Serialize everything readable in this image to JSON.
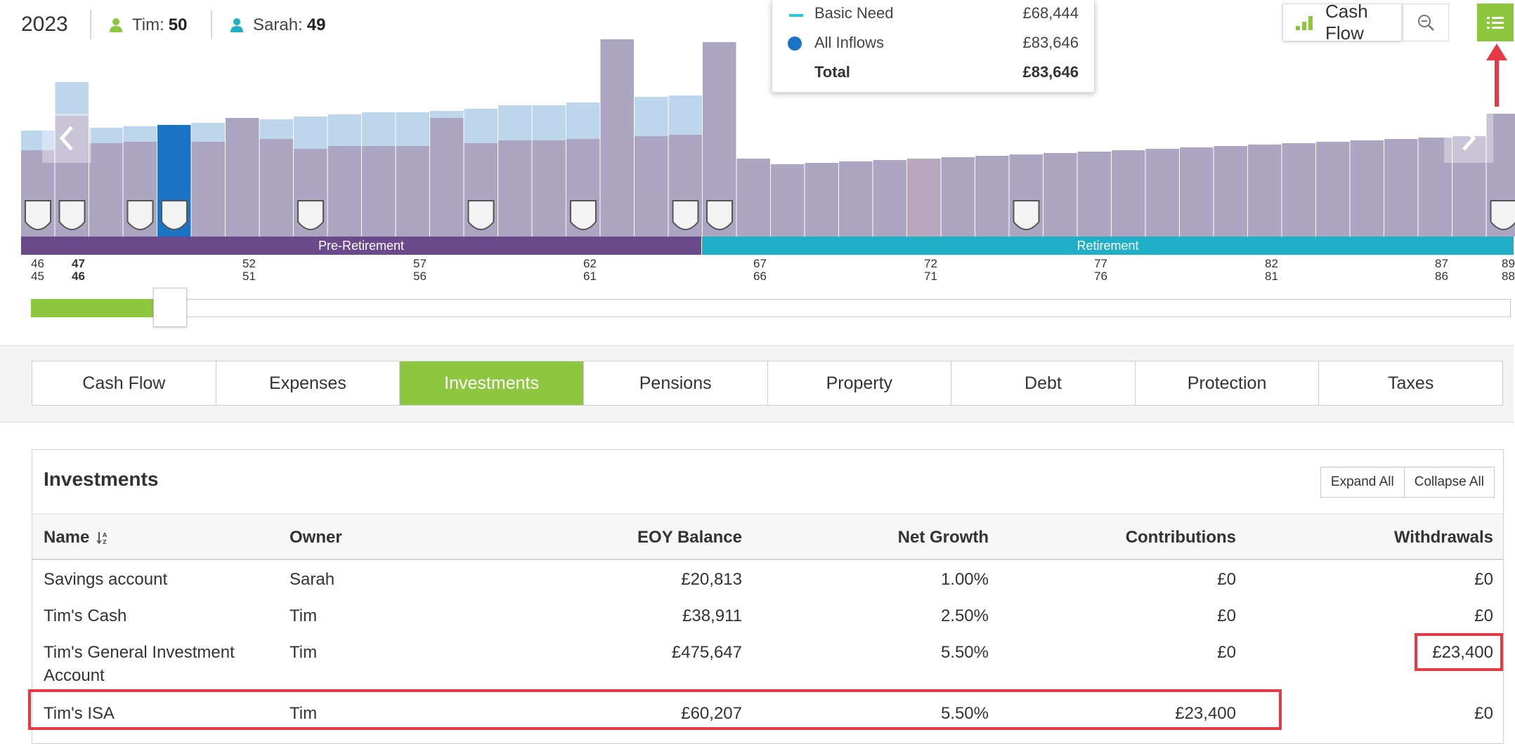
{
  "header": {
    "year": "2023",
    "person1": {
      "name": "Tim:",
      "age": "50",
      "color": "#8dc63f"
    },
    "person2": {
      "name": "Sarah:",
      "age": "49",
      "color": "#1fb0c8"
    }
  },
  "tooltip": {
    "rows": [
      {
        "label": "Basic Need",
        "value": "£68,444"
      },
      {
        "label": "All Inflows",
        "value": "£83,646"
      },
      {
        "label": "Total",
        "value": "£83,646"
      }
    ]
  },
  "toolbar": {
    "cashflow_label": "Cash Flow"
  },
  "chart_data": {
    "type": "bar",
    "x_top": [
      "46",
      "47",
      "52",
      "57",
      "62",
      "67",
      "72",
      "77",
      "82",
      "87",
      "89"
    ],
    "x_bottom": [
      "45",
      "46",
      "51",
      "56",
      "61",
      "66",
      "71",
      "76",
      "81",
      "86",
      "88"
    ],
    "phases": [
      "Pre-Retirement",
      "Retirement"
    ],
    "colors": {
      "base": "#aca6c2",
      "shortfall": "#bed6ec",
      "selected": "#1a73c4",
      "pre": "#6b4a8c",
      "post": "#1fb0c8"
    }
  },
  "tabs": [
    "Cash Flow",
    "Expenses",
    "Investments",
    "Pensions",
    "Property",
    "Debt",
    "Protection",
    "Taxes"
  ],
  "investments": {
    "title": "Investments",
    "expand_all": "Expand All",
    "collapse_all": "Collapse All",
    "columns": [
      "Name",
      "Owner",
      "EOY Balance",
      "Net Growth",
      "Contributions",
      "Withdrawals"
    ],
    "rows": [
      {
        "name": "Savings account",
        "owner": "Sarah",
        "balance": "£20,813",
        "growth": "1.00%",
        "contrib": "£0",
        "withdraw": "£0"
      },
      {
        "name": "Tim's Cash",
        "owner": "Tim",
        "balance": "£38,911",
        "growth": "2.50%",
        "contrib": "£0",
        "withdraw": "£0"
      },
      {
        "name": "Tim's General Investment",
        "name2": "Account",
        "owner": "Tim",
        "balance": "£475,647",
        "growth": "5.50%",
        "contrib": "£0",
        "withdraw": "£23,400"
      },
      {
        "name": "Tim's ISA",
        "owner": "Tim",
        "balance": "£60,207",
        "growth": "5.50%",
        "contrib": "£23,400",
        "withdraw": "£0"
      }
    ]
  }
}
